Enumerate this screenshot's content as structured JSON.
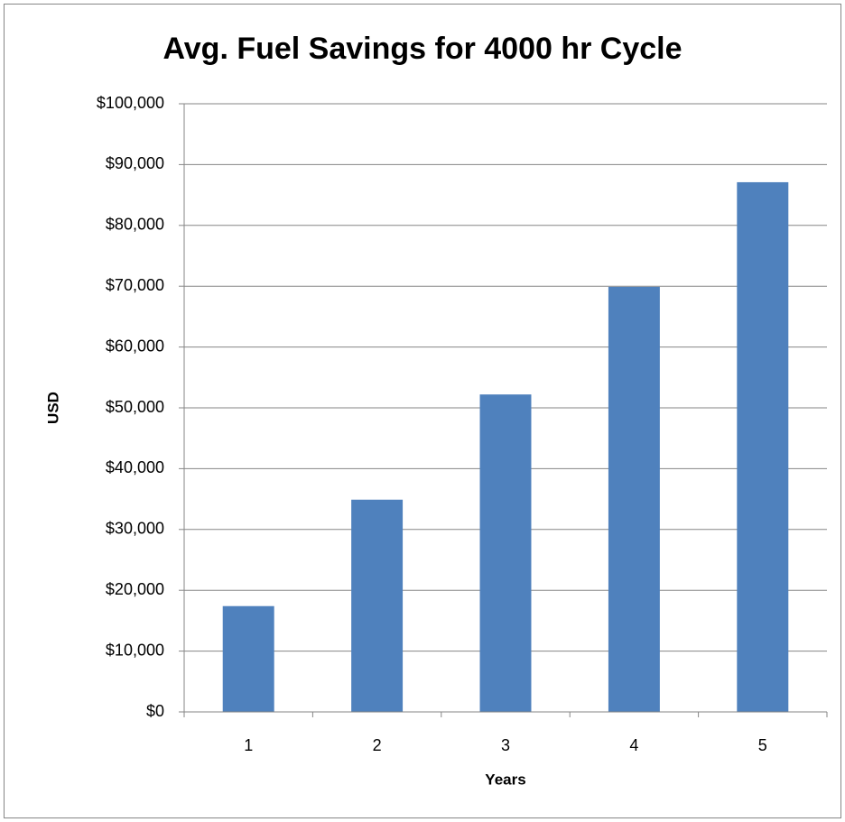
{
  "chart_data": {
    "type": "bar",
    "title": "Avg. Fuel Savings for 4000 hr Cycle",
    "x_label": "Years",
    "y_label": "USD",
    "categories": [
      "1",
      "2",
      "3",
      "4",
      "5"
    ],
    "values": [
      17400,
      34900,
      52200,
      69900,
      87100
    ],
    "color": "#4f81bd",
    "ylim": [
      0,
      100000
    ],
    "yticks": [
      {
        "value": 0,
        "label": "$0"
      },
      {
        "value": 10000,
        "label": "$10,000"
      },
      {
        "value": 20000,
        "label": "$20,000"
      },
      {
        "value": 30000,
        "label": "$30,000"
      },
      {
        "value": 40000,
        "label": "$40,000"
      },
      {
        "value": 50000,
        "label": "$50,000"
      },
      {
        "value": 60000,
        "label": "$60,000"
      },
      {
        "value": 70000,
        "label": "$70,000"
      },
      {
        "value": 80000,
        "label": "$80,000"
      },
      {
        "value": 90000,
        "label": "$90,000"
      },
      {
        "value": 100000,
        "label": "$100,000"
      }
    ],
    "grid": true
  }
}
